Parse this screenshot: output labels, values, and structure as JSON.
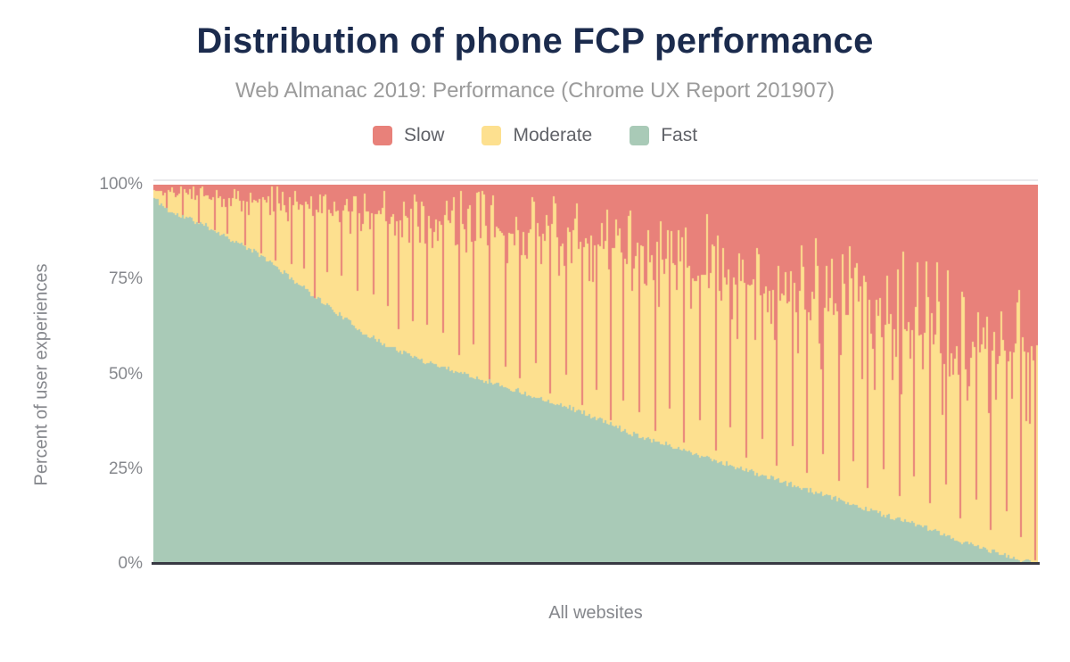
{
  "chart_data": {
    "type": "bar",
    "stacked": true,
    "title": "Distribution of phone FCP performance",
    "subtitle": "Web Almanac 2019: Performance (Chrome UX Report 201907)",
    "xlabel": "All websites",
    "ylabel": "Percent of user experiences",
    "ylim": [
      0,
      100
    ],
    "ytick_labels": [
      "0%",
      "25%",
      "50%",
      "75%",
      "100%"
    ],
    "grid": false,
    "legend_position": "top",
    "legend": [
      {
        "label": "Slow",
        "color": "#e8817a"
      },
      {
        "label": "Moderate",
        "color": "#fde08f"
      },
      {
        "label": "Fast",
        "color": "#a9cab7"
      }
    ],
    "bar_count": 496,
    "series": {
      "x_pct": [
        0,
        2,
        4,
        6,
        8,
        10,
        12,
        14,
        16,
        18,
        20,
        22,
        24,
        26,
        28,
        30,
        32,
        34,
        36,
        38,
        40,
        42,
        44,
        46,
        48,
        50,
        52,
        54,
        56,
        58,
        60,
        62,
        64,
        66,
        68,
        70,
        72,
        74,
        76,
        78,
        80,
        82,
        84,
        86,
        88,
        90,
        92,
        94,
        96,
        98,
        100
      ],
      "fast_pct": [
        96.5,
        92.5,
        91,
        89,
        86.5,
        84,
        81.5,
        78,
        74.5,
        71,
        67.5,
        64,
        60.5,
        58,
        56,
        54,
        52.5,
        51,
        49.5,
        48,
        46.5,
        45,
        43.5,
        42,
        40.5,
        38.5,
        36.5,
        34.5,
        33,
        31.5,
        30,
        28.5,
        27,
        25.5,
        24,
        22.5,
        21,
        19.5,
        18,
        16.5,
        15,
        13.5,
        12,
        10.5,
        9,
        7,
        5.5,
        4,
        2.5,
        1,
        0.3
      ],
      "slow_baseline_pct": [
        1.5,
        2,
        2.5,
        3,
        3.5,
        4,
        4.5,
        5,
        5.5,
        6,
        6.5,
        7,
        7.5,
        8,
        8.5,
        9,
        9.5,
        10,
        10.5,
        11,
        12,
        12.5,
        13,
        14,
        15,
        16,
        17,
        18,
        19,
        20,
        21,
        22,
        23.5,
        25,
        26.5,
        28,
        29.5,
        31,
        32.5,
        34,
        35.5,
        36.5,
        37.5,
        38.5,
        39.5,
        40.5,
        41.5,
        42.5,
        43.5,
        44.5,
        45
      ]
    },
    "slow_spikes": [
      [
        1.5,
        94
      ],
      [
        3.2,
        92
      ],
      [
        5,
        90
      ],
      [
        6.8,
        88
      ],
      [
        8.2,
        87
      ],
      [
        10.4,
        84
      ],
      [
        12.1,
        82
      ],
      [
        13.8,
        80
      ],
      [
        15.6,
        79
      ],
      [
        17,
        78
      ],
      [
        18.1,
        70
      ],
      [
        19.6,
        77
      ],
      [
        21.2,
        76
      ],
      [
        23,
        72
      ],
      [
        24.8,
        71
      ],
      [
        26.5,
        68
      ],
      [
        27.7,
        62
      ],
      [
        29.3,
        64
      ],
      [
        31,
        63
      ],
      [
        32.8,
        61
      ],
      [
        34.5,
        55
      ],
      [
        36.2,
        58
      ],
      [
        38,
        47
      ],
      [
        39.7,
        52
      ],
      [
        41.5,
        49
      ],
      [
        43.2,
        53
      ],
      [
        44.9,
        45
      ],
      [
        46.6,
        50
      ],
      [
        48.4,
        42
      ],
      [
        50.1,
        46
      ],
      [
        51.8,
        38
      ],
      [
        53.2,
        43
      ],
      [
        54.9,
        40
      ],
      [
        56.7,
        35
      ],
      [
        58.4,
        41
      ],
      [
        60.1,
        32
      ],
      [
        61.9,
        38
      ],
      [
        63.6,
        30
      ],
      [
        65.3,
        36
      ],
      [
        67.1,
        28
      ],
      [
        68.8,
        33
      ],
      [
        70.5,
        26
      ],
      [
        72.3,
        31
      ],
      [
        74,
        24
      ],
      [
        75.7,
        29
      ],
      [
        77.5,
        22
      ],
      [
        79.2,
        27
      ],
      [
        80.9,
        20
      ],
      [
        82.7,
        25
      ],
      [
        84.4,
        18
      ],
      [
        86.1,
        23
      ],
      [
        87.9,
        16
      ],
      [
        89.6,
        21
      ],
      [
        91.3,
        12
      ],
      [
        93.1,
        17
      ],
      [
        94.8,
        9
      ],
      [
        96.5,
        14
      ],
      [
        98.2,
        7
      ],
      [
        99.8,
        1
      ]
    ],
    "noise": {
      "seed": 11,
      "fast_jitter": 0.7,
      "slow_amp_min": 2,
      "slow_amp_max": 24,
      "amp_power": 1.1,
      "shape": 2
    }
  },
  "colors": {
    "slow": "#e8817a",
    "moderate": "#fde08f",
    "fast": "#a9cab7",
    "title": "#1b2b4d",
    "subtitle": "#9b9b9b",
    "axis_text": "#85878c",
    "legend_text": "#606268",
    "axis_line": "#383943",
    "plot_top_border": "#e9e9ec",
    "background": "#ffffff"
  }
}
